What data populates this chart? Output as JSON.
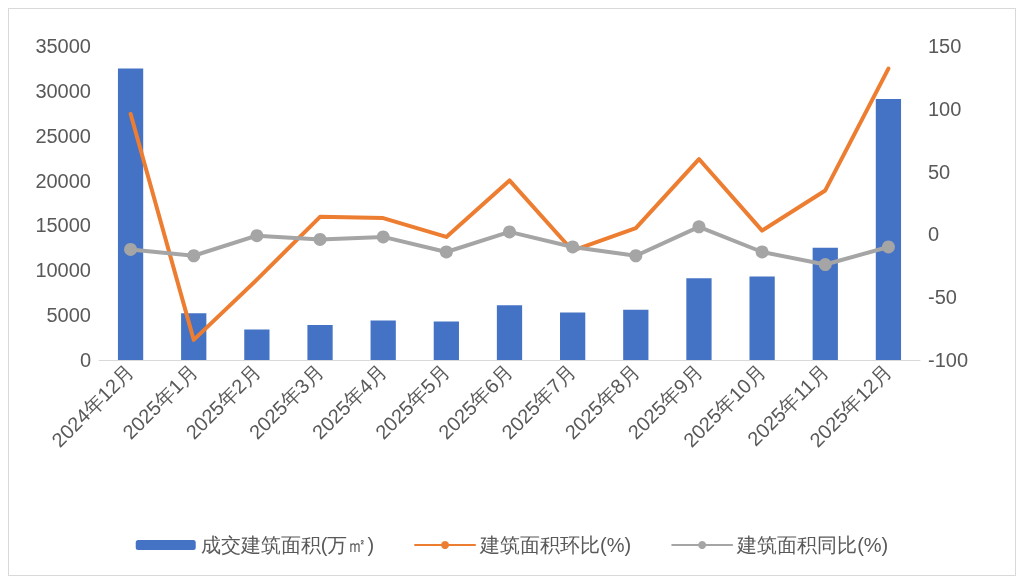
{
  "chart_data": {
    "type": "bar",
    "categories": [
      "2024年12月",
      "2025年1月",
      "2025年2月",
      "2025年3月",
      "2025年4月",
      "2025年5月",
      "2025年6月",
      "2025年7月",
      "2025年8月",
      "2025年9月",
      "2025年10月",
      "2025年11月",
      "2025年12月"
    ],
    "series": [
      {
        "name": "成交建筑面积(万㎡)",
        "color": "#4472c4",
        "values": [
          32500,
          5200,
          3400,
          3900,
          4400,
          4300,
          6100,
          5300,
          5600,
          9100,
          9300,
          12500,
          29100
        ]
      },
      {
        "name": "建筑面积环比(%)",
        "type": "line",
        "axis": "y2",
        "color": "#ed7d31",
        "marker": "none",
        "values": [
          96,
          -84,
          -36,
          14,
          13,
          -2,
          43,
          -13,
          5,
          60,
          3,
          35,
          132
        ]
      },
      {
        "name": "建筑面积同比(%)",
        "type": "line",
        "axis": "y2",
        "color": "#a5a5a5",
        "marker": "circle",
        "values": [
          -12,
          -17,
          -1,
          -4,
          -2,
          -14,
          2,
          -10,
          -17,
          6,
          -14,
          -24,
          -10
        ]
      }
    ],
    "ylim": [
      0,
      35000
    ],
    "yticks": [
      0,
      5000,
      10000,
      15000,
      20000,
      25000,
      30000,
      35000
    ],
    "y2lim": [
      -100,
      150
    ],
    "y2ticks": [
      -100,
      -50,
      0,
      50,
      100,
      150
    ],
    "grid": false,
    "legend": "bottom",
    "line_style": "solid"
  }
}
